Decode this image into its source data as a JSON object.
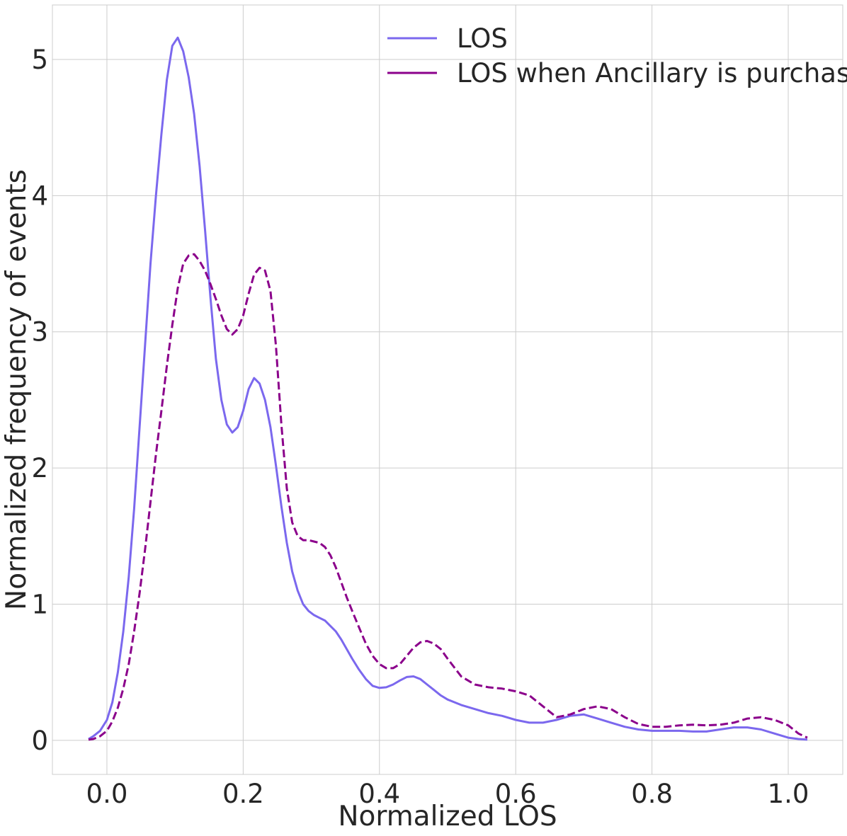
{
  "chart_data": {
    "type": "line",
    "title": "",
    "xlabel": "Normalized LOS",
    "ylabel": "Normalized frequency of events",
    "xlim": [
      -0.08,
      1.08
    ],
    "ylim": [
      -0.25,
      5.4
    ],
    "x_ticks": [
      0.0,
      0.2,
      0.4,
      0.6,
      0.8,
      1.0
    ],
    "x_tick_labels": [
      "0.0",
      "0.2",
      "0.4",
      "0.6",
      "0.8",
      "1.0"
    ],
    "y_ticks": [
      0,
      1,
      2,
      3,
      4,
      5
    ],
    "y_tick_labels": [
      "0",
      "1",
      "2",
      "3",
      "4",
      "5"
    ],
    "grid": true,
    "legend_position": "top-right",
    "series": [
      {
        "name": "LOS",
        "color": "#7b68ee",
        "style": "solid",
        "x": [
          -0.027,
          -0.02,
          -0.01,
          0.0,
          0.008,
          0.016,
          0.024,
          0.032,
          0.04,
          0.048,
          0.056,
          0.064,
          0.072,
          0.08,
          0.088,
          0.096,
          0.104,
          0.112,
          0.12,
          0.128,
          0.136,
          0.144,
          0.152,
          0.16,
          0.168,
          0.176,
          0.184,
          0.192,
          0.2,
          0.208,
          0.216,
          0.224,
          0.232,
          0.24,
          0.248,
          0.256,
          0.264,
          0.272,
          0.28,
          0.288,
          0.296,
          0.304,
          0.312,
          0.32,
          0.328,
          0.336,
          0.344,
          0.352,
          0.36,
          0.37,
          0.38,
          0.39,
          0.4,
          0.41,
          0.42,
          0.43,
          0.44,
          0.45,
          0.46,
          0.47,
          0.48,
          0.49,
          0.5,
          0.52,
          0.54,
          0.56,
          0.58,
          0.6,
          0.62,
          0.64,
          0.66,
          0.68,
          0.7,
          0.72,
          0.74,
          0.76,
          0.78,
          0.8,
          0.82,
          0.84,
          0.86,
          0.88,
          0.9,
          0.92,
          0.94,
          0.96,
          0.98,
          1.0,
          1.015,
          1.028
        ],
        "y": [
          0.01,
          0.03,
          0.07,
          0.15,
          0.28,
          0.5,
          0.8,
          1.2,
          1.7,
          2.3,
          2.9,
          3.5,
          4.0,
          4.45,
          4.85,
          5.1,
          5.16,
          5.06,
          4.87,
          4.6,
          4.22,
          3.75,
          3.25,
          2.8,
          2.5,
          2.32,
          2.26,
          2.3,
          2.42,
          2.58,
          2.66,
          2.62,
          2.5,
          2.3,
          2.02,
          1.72,
          1.45,
          1.24,
          1.1,
          1.0,
          0.95,
          0.92,
          0.9,
          0.88,
          0.84,
          0.8,
          0.74,
          0.67,
          0.6,
          0.52,
          0.45,
          0.4,
          0.385,
          0.39,
          0.41,
          0.44,
          0.465,
          0.47,
          0.45,
          0.41,
          0.37,
          0.33,
          0.3,
          0.26,
          0.23,
          0.2,
          0.18,
          0.15,
          0.13,
          0.13,
          0.15,
          0.18,
          0.19,
          0.16,
          0.13,
          0.1,
          0.08,
          0.07,
          0.07,
          0.07,
          0.065,
          0.065,
          0.08,
          0.095,
          0.095,
          0.08,
          0.05,
          0.02,
          0.01,
          0.005
        ]
      },
      {
        "name": "LOS when Ancillary is purchased",
        "color": "#8b008b",
        "style": "dashed",
        "x": [
          -0.027,
          -0.02,
          -0.01,
          0.0,
          0.008,
          0.016,
          0.024,
          0.032,
          0.04,
          0.048,
          0.056,
          0.064,
          0.072,
          0.08,
          0.088,
          0.096,
          0.104,
          0.112,
          0.12,
          0.128,
          0.136,
          0.144,
          0.152,
          0.16,
          0.168,
          0.176,
          0.184,
          0.192,
          0.2,
          0.208,
          0.216,
          0.224,
          0.232,
          0.24,
          0.248,
          0.256,
          0.264,
          0.272,
          0.28,
          0.288,
          0.296,
          0.304,
          0.312,
          0.32,
          0.328,
          0.336,
          0.344,
          0.352,
          0.36,
          0.37,
          0.38,
          0.39,
          0.4,
          0.41,
          0.42,
          0.43,
          0.44,
          0.45,
          0.46,
          0.47,
          0.48,
          0.49,
          0.5,
          0.52,
          0.54,
          0.56,
          0.58,
          0.6,
          0.62,
          0.64,
          0.66,
          0.68,
          0.7,
          0.72,
          0.74,
          0.76,
          0.78,
          0.8,
          0.82,
          0.84,
          0.86,
          0.88,
          0.9,
          0.92,
          0.94,
          0.96,
          0.98,
          1.0,
          1.015,
          1.028
        ],
        "y": [
          0.005,
          0.01,
          0.03,
          0.07,
          0.14,
          0.24,
          0.38,
          0.56,
          0.8,
          1.08,
          1.4,
          1.75,
          2.1,
          2.42,
          2.75,
          3.05,
          3.32,
          3.5,
          3.56,
          3.57,
          3.52,
          3.45,
          3.35,
          3.24,
          3.12,
          3.02,
          2.98,
          3.02,
          3.12,
          3.28,
          3.42,
          3.47,
          3.45,
          3.3,
          2.9,
          2.32,
          1.85,
          1.6,
          1.5,
          1.47,
          1.47,
          1.46,
          1.45,
          1.42,
          1.36,
          1.27,
          1.16,
          1.05,
          0.95,
          0.83,
          0.71,
          0.62,
          0.56,
          0.53,
          0.53,
          0.56,
          0.62,
          0.68,
          0.72,
          0.73,
          0.71,
          0.67,
          0.6,
          0.47,
          0.41,
          0.39,
          0.38,
          0.36,
          0.33,
          0.25,
          0.17,
          0.19,
          0.23,
          0.25,
          0.23,
          0.17,
          0.12,
          0.1,
          0.1,
          0.11,
          0.115,
          0.11,
          0.115,
          0.13,
          0.16,
          0.17,
          0.15,
          0.11,
          0.05,
          0.02
        ]
      }
    ]
  }
}
